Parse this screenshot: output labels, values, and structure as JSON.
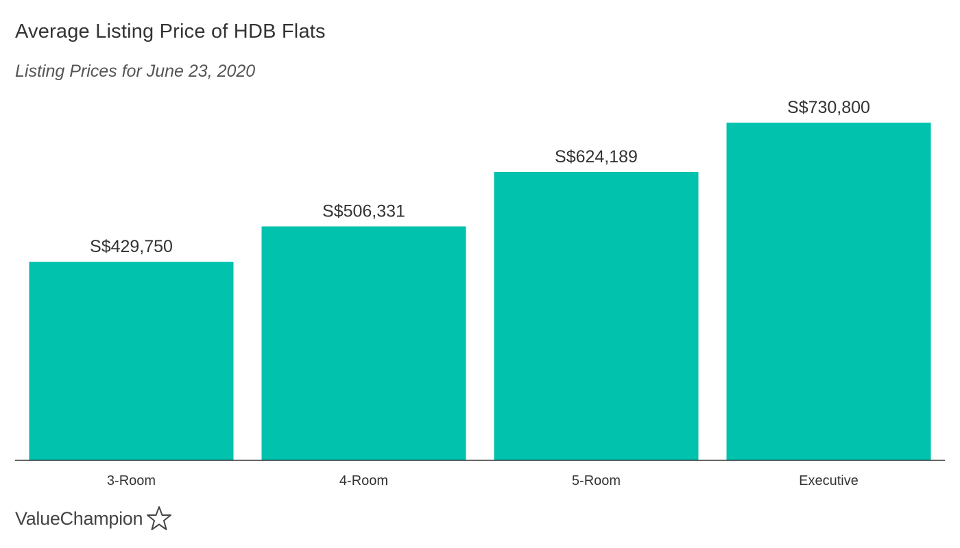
{
  "chart_data": {
    "type": "bar",
    "title": "Average Listing Price of HDB Flats",
    "subtitle": "Listing Prices for June 23, 2020",
    "categories": [
      "3-Room",
      "4-Room",
      "5-Room",
      "Executive"
    ],
    "values": [
      429750,
      506331,
      624189,
      730800
    ],
    "value_labels": [
      "S$429,750",
      "S$506,331",
      "S$624,189",
      "S$730,800"
    ],
    "ylim": [
      0,
      800000
    ],
    "grid": false,
    "bar_color": "#00c2ad"
  },
  "brand": {
    "name": "ValueChampion",
    "icon": "star-outline-icon"
  }
}
